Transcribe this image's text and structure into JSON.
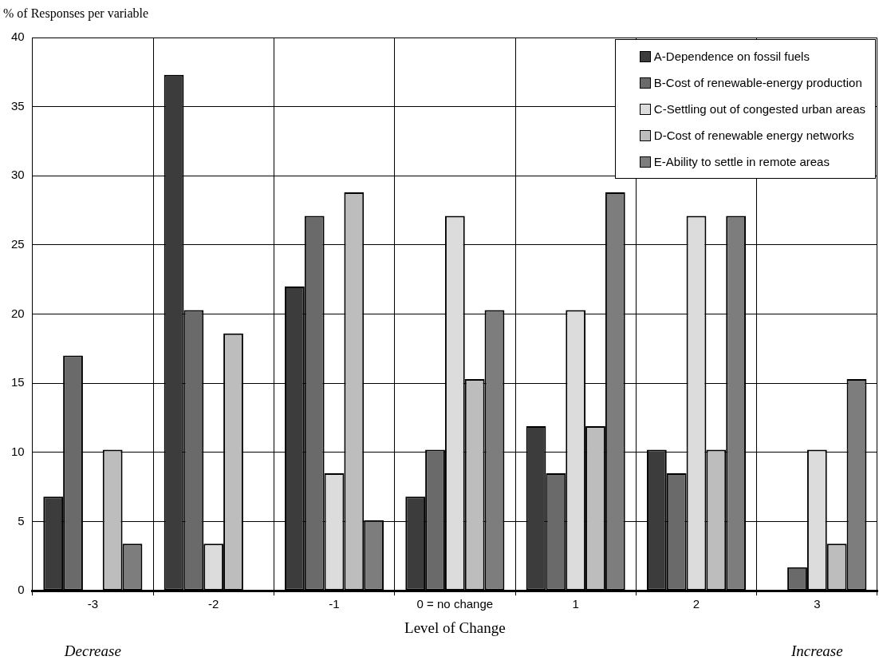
{
  "chart_data": {
    "type": "bar",
    "ylabel": "% of Responses per variable",
    "xlabel": "Level of Change",
    "categories": [
      "-3",
      "-2",
      "-1",
      "0 = no change",
      "1",
      "2",
      "3"
    ],
    "series": [
      {
        "name": "A-Dependence on fossil fuels",
        "color": "#3c3c3c",
        "values": [
          6.8,
          37.3,
          22.0,
          6.8,
          11.9,
          10.2,
          0
        ]
      },
      {
        "name": "B-Cost of renewable-energy production",
        "color": "#6a6a6a",
        "values": [
          17.0,
          20.3,
          27.1,
          10.2,
          8.5,
          8.5,
          1.7
        ]
      },
      {
        "name": "C-Settling out of congested urban areas",
        "color": "#dcdcdc",
        "values": [
          0,
          3.4,
          8.5,
          27.1,
          20.3,
          27.1,
          10.2
        ]
      },
      {
        "name": "D-Cost of renewable energy networks",
        "color": "#bdbdbd",
        "values": [
          10.2,
          18.6,
          28.8,
          15.3,
          11.9,
          10.2,
          3.4
        ]
      },
      {
        "name": "E-Ability to settle in remote areas",
        "color": "#7d7d7d",
        "values": [
          3.4,
          0,
          5.1,
          20.3,
          28.8,
          27.1,
          15.3
        ]
      }
    ],
    "ylim": [
      0,
      40
    ],
    "yticks": [
      0,
      5,
      10,
      15,
      20,
      25,
      30,
      35,
      40
    ],
    "grid": true,
    "legend": "top right",
    "annotations": [
      "Decrease",
      "Increase"
    ]
  }
}
